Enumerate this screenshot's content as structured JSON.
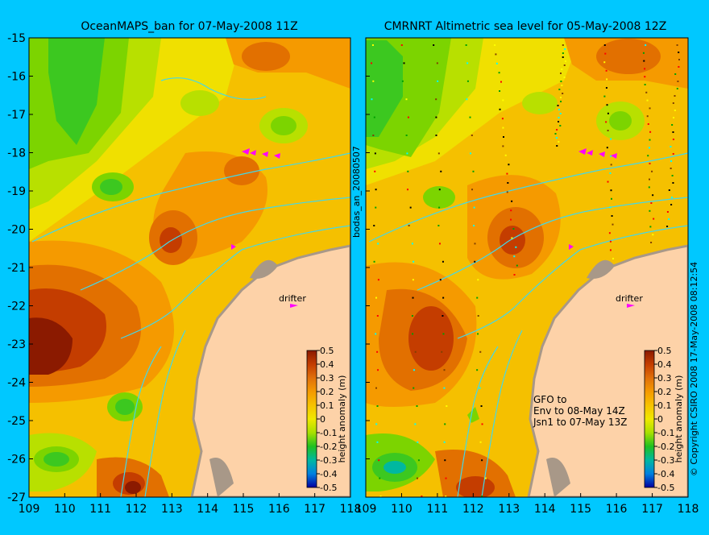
{
  "left_panel": {
    "title": "OceanMAPS_ban for 07-May-2008 11Z",
    "drifter_label": "drifter",
    "colorbar_label": "height anomaly (m)"
  },
  "right_panel": {
    "title": "CMRNRT Altimetric sea level  for 05-May-2008 12Z",
    "drifter_label": "drifter",
    "colorbar_label": "height anomaly (m)",
    "notes": [
      "GFO to",
      "Env to 08-May 14Z",
      "Jsn1 to 07-May 13Z"
    ]
  },
  "side_labels": {
    "middle": "bodas_an_20080507",
    "right": "© Copyright CSIRO 2008   17-May-2008 08:12:54"
  },
  "axes": {
    "lon_ticks": [
      "109",
      "110",
      "111",
      "112",
      "113",
      "114",
      "115",
      "116",
      "117",
      "118"
    ],
    "lat_ticks": [
      "-15",
      "-16",
      "-17",
      "-18",
      "-19",
      "-20",
      "-21",
      "-22",
      "-23",
      "-24",
      "-25",
      "-26",
      "-27"
    ]
  },
  "colorbar": {
    "ticks": [
      "0.5",
      "0.4",
      "0.3",
      "0.2",
      "0.1",
      "0",
      "-0.1",
      "-0.2",
      "-0.3",
      "-0.4",
      "-0.5"
    ],
    "colors": [
      "#8b1a00",
      "#c43d00",
      "#e0700a",
      "#f59a00",
      "#f7c200",
      "#f0e800",
      "#a8e000",
      "#20c020",
      "#00b8a0",
      "#0080e0",
      "#0000a0"
    ]
  },
  "colors": {
    "background": "#00c8ff",
    "land": "#fdd2a8",
    "coast": "#a89888",
    "contour": "#44d8e8",
    "drifter": "#ff00ff"
  }
}
